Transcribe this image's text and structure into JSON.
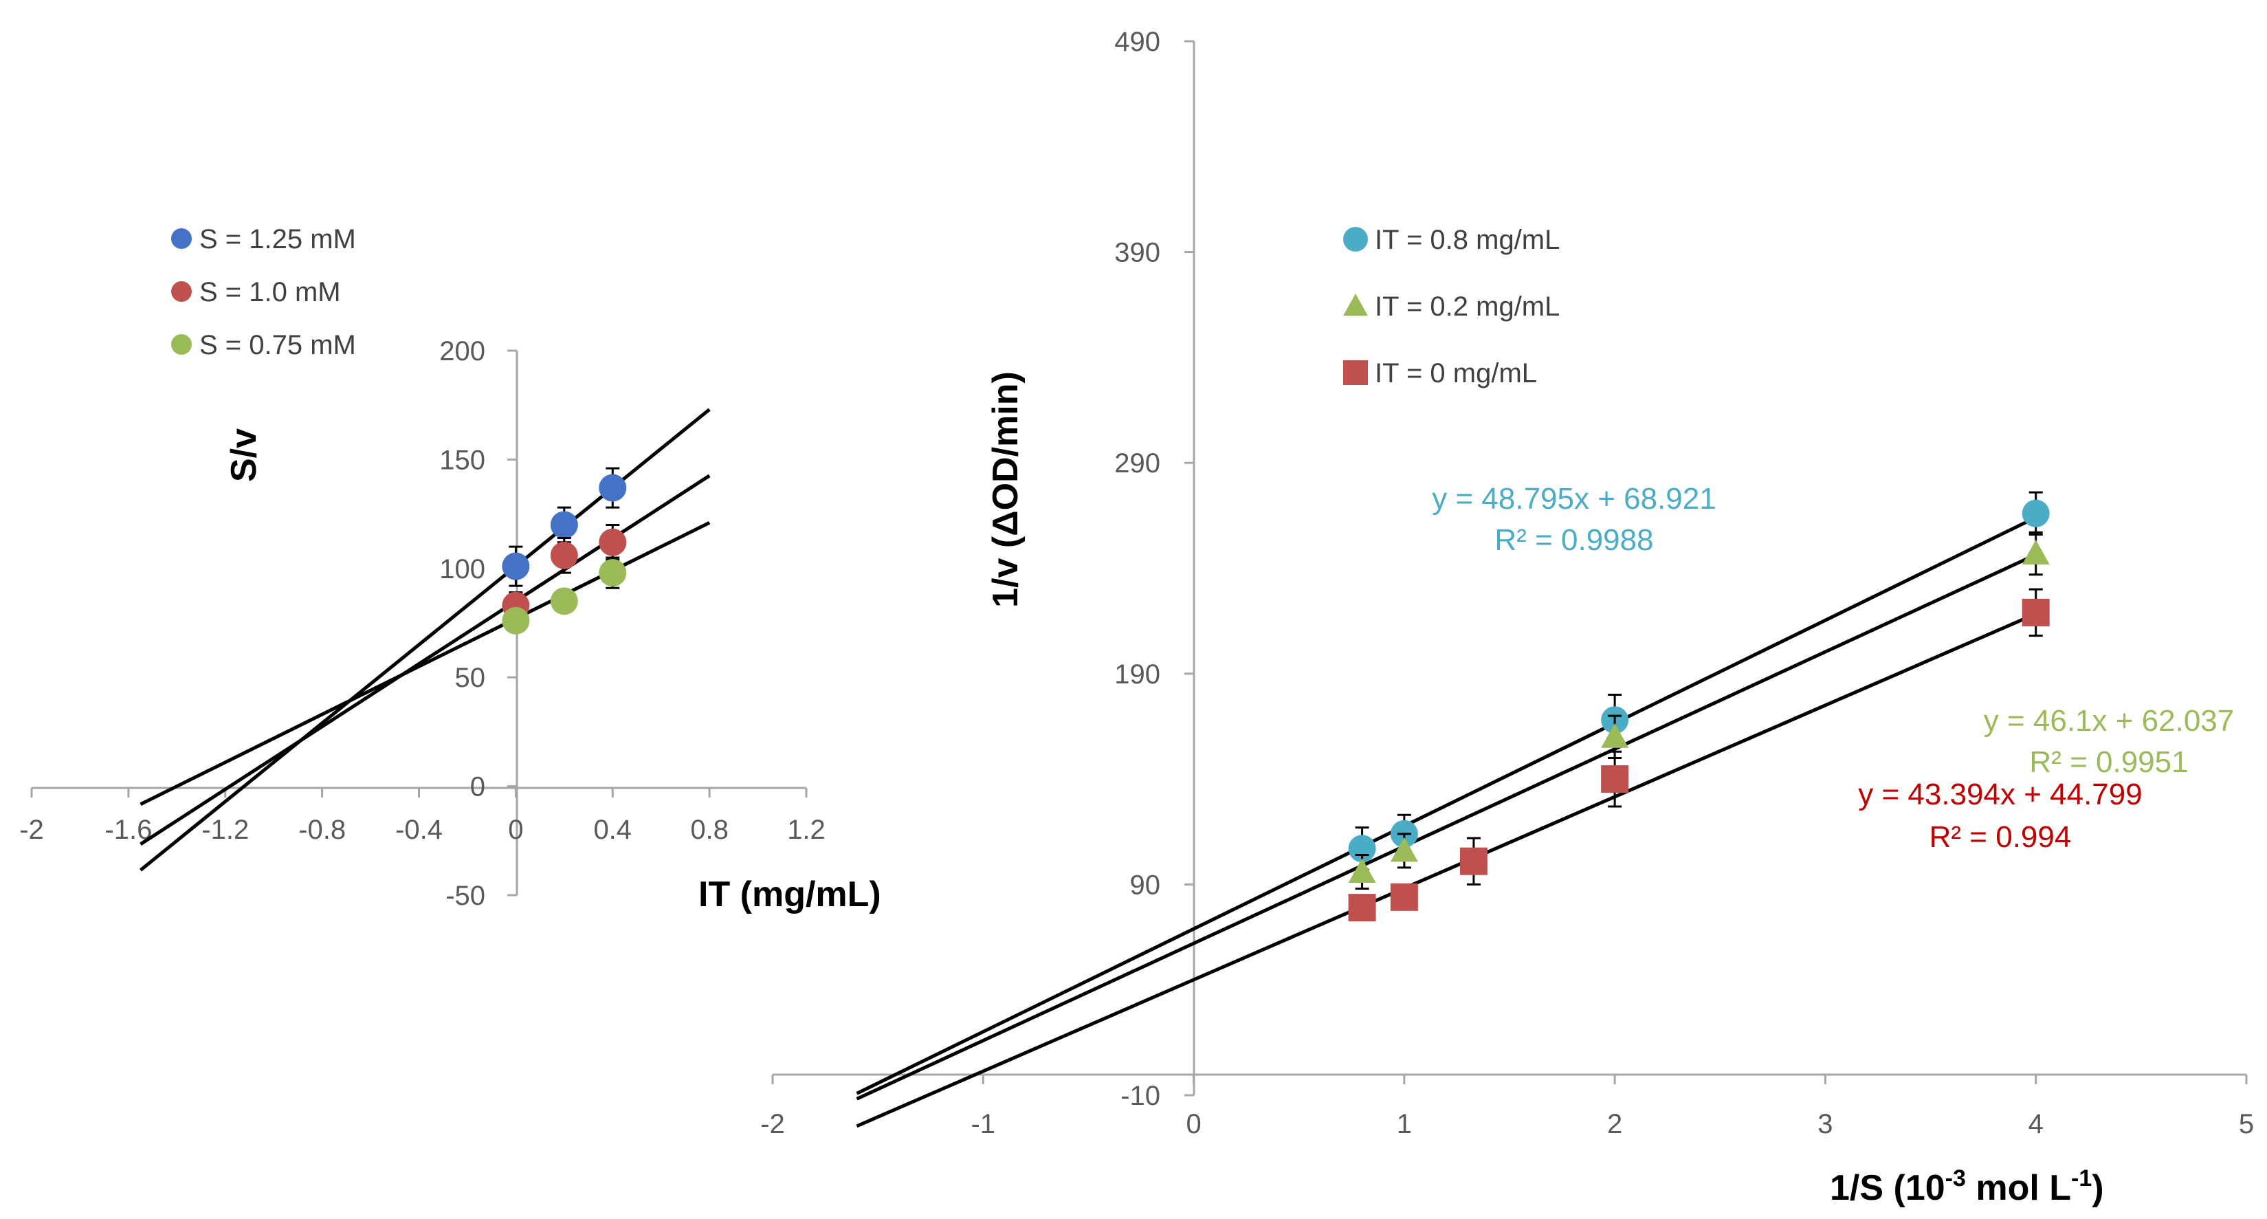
{
  "chart_data": [
    {
      "type": "scatter",
      "title": "",
      "xlabel": "IT (mg/mL)",
      "ylabel": "S/v",
      "xlim": [
        -2,
        1.2
      ],
      "ylim": [
        -50,
        200
      ],
      "xticks": [
        "-2",
        "-1.6",
        "-1.2",
        "-0.8",
        "-0.4",
        "0",
        "0.4",
        "0.8",
        "1.2"
      ],
      "yticks": [
        "-50",
        "0",
        "50",
        "100",
        "150",
        "200"
      ],
      "xtick_values": [
        -2,
        -1.6,
        -1.2,
        -0.8,
        -0.4,
        0,
        0.4,
        0.8,
        1.2
      ],
      "ytick_values": [
        -50,
        0,
        50,
        100,
        150,
        200
      ],
      "legend_position": "top-left",
      "series": [
        {
          "name": "S = 1.25 mM",
          "color": "#4472C4",
          "marker": "circle",
          "x": [
            0,
            0.2,
            0.4
          ],
          "y": [
            101,
            120,
            137
          ],
          "err": [
            9,
            8,
            9
          ],
          "fit": {
            "slope": 90,
            "intercept": 101
          }
        },
        {
          "name": "S = 1.0 mM",
          "color": "#C0504D",
          "marker": "circle",
          "x": [
            0,
            0.2,
            0.4
          ],
          "y": [
            83,
            106,
            112
          ],
          "err": [
            6,
            8,
            8
          ],
          "fit": {
            "slope": 72,
            "intercept": 85
          }
        },
        {
          "name": "S = 0.75 mM",
          "color": "#9BBB59",
          "marker": "circle",
          "x": [
            0,
            0.2,
            0.4
          ],
          "y": [
            76,
            85,
            98
          ],
          "err": [
            5,
            4,
            7
          ],
          "fit": {
            "slope": 55,
            "intercept": 77
          }
        }
      ]
    },
    {
      "type": "scatter",
      "title": "",
      "xlabel": "1/S (10",
      "xlabel_exp": "-3",
      "xlabel_mid": " mol L",
      "xlabel_exp2": "-1",
      "xlabel_end": ")",
      "ylabel": "1/v  (ΔOD/min)",
      "xlim": [
        -2,
        5
      ],
      "ylim": [
        -10,
        490
      ],
      "xticks": [
        "-2",
        "-1",
        "0",
        "1",
        "2",
        "3",
        "4",
        "5"
      ],
      "yticks": [
        "-10",
        "90",
        "190",
        "290",
        "390",
        "490"
      ],
      "xtick_values": [
        -2,
        -1,
        0,
        1,
        2,
        3,
        4,
        5
      ],
      "ytick_values": [
        -10,
        90,
        190,
        290,
        390,
        490
      ],
      "legend_position": "top-left",
      "series": [
        {
          "name": "IT = 0.8 mg/mL",
          "color": "#4BACC6",
          "marker": "circle",
          "x": [
            0.8,
            1,
            2,
            4
          ],
          "y": [
            107,
            114,
            168,
            266
          ],
          "err": [
            10,
            9,
            12,
            10
          ],
          "fit": {
            "slope": 48.795,
            "intercept": 68.921
          },
          "equation": "y = 48.795x + 68.921",
          "r2": "R² = 0.9988"
        },
        {
          "name": "IT = 0.2 mg/mL",
          "color": "#9BBB59",
          "marker": "triangle",
          "x": [
            0.8,
            1,
            2,
            4
          ],
          "y": [
            96,
            106,
            160,
            247
          ],
          "err": [
            8,
            8,
            10,
            10
          ],
          "fit": {
            "slope": 46.1,
            "intercept": 62.037
          },
          "equation": "y = 46.1x + 62.037",
          "r2": "R² = 0.9951"
        },
        {
          "name": "IT = 0 mg/mL",
          "color": "#C0504D",
          "marker": "square",
          "x": [
            0.8,
            1,
            1.33,
            2,
            4
          ],
          "y": [
            79,
            84,
            101,
            140,
            219
          ],
          "err": [
            5,
            5,
            11,
            13,
            11
          ],
          "fit": {
            "slope": 43.394,
            "intercept": 44.799
          },
          "equation": "y = 43.394x + 44.799",
          "r2": "R² = 0.994"
        }
      ]
    }
  ]
}
